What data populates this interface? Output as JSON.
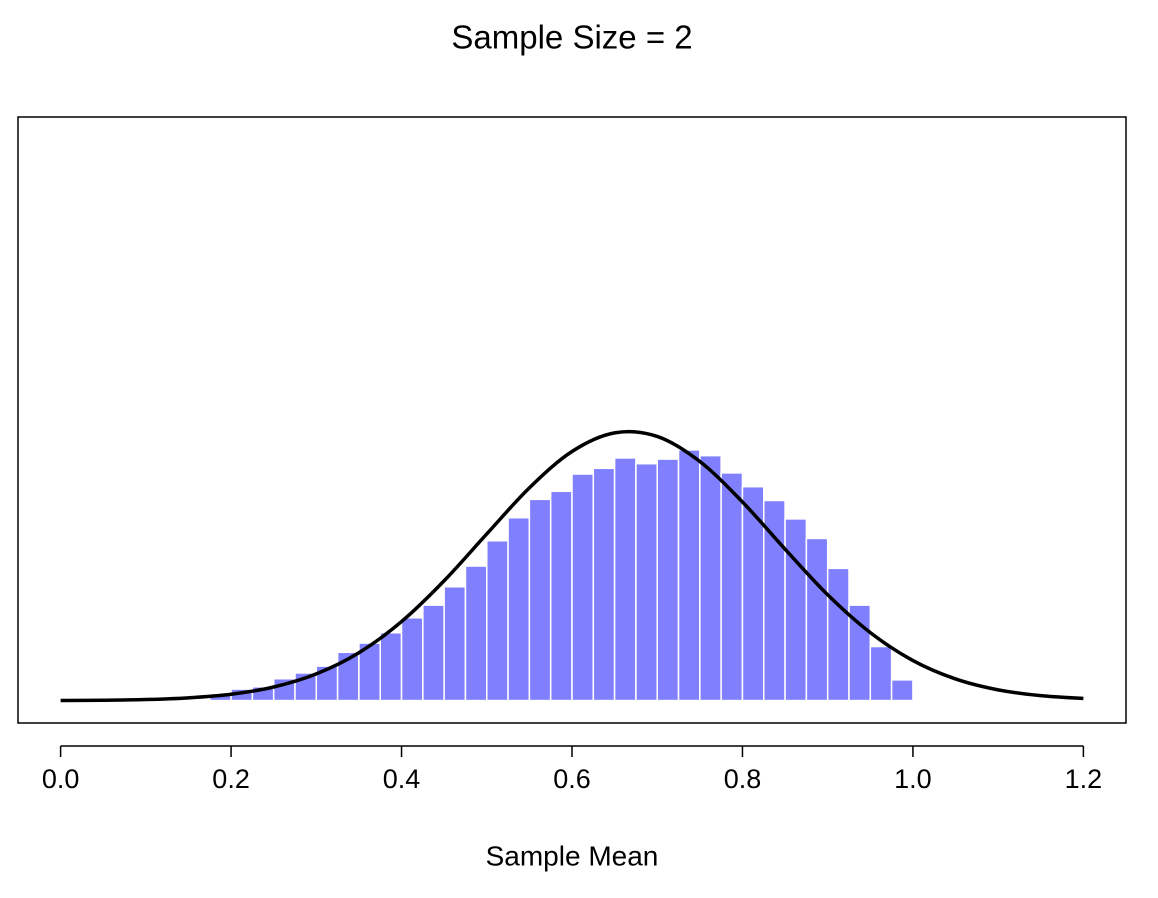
{
  "chart_data": {
    "type": "histogram",
    "title": "Sample Size = 2",
    "x_label": "Sample Mean",
    "bins": [
      0.175,
      0.2,
      0.225,
      0.25,
      0.275,
      0.3,
      0.325,
      0.35,
      0.375,
      0.4,
      0.425,
      0.45,
      0.475,
      0.5,
      0.525,
      0.55,
      0.575,
      0.6,
      0.625,
      0.65,
      0.675,
      0.7,
      0.725,
      0.75,
      0.775,
      0.8,
      0.825,
      0.85,
      0.875,
      0.9,
      0.925,
      0.95,
      0.975,
      1.0
    ],
    "values": [
      0.06,
      0.1,
      0.12,
      0.19,
      0.24,
      0.3,
      0.42,
      0.5,
      0.59,
      0.72,
      0.83,
      0.99,
      1.17,
      1.39,
      1.59,
      1.75,
      1.82,
      1.97,
      2.02,
      2.11,
      2.06,
      2.1,
      2.18,
      2.13,
      1.98,
      1.86,
      1.74,
      1.58,
      1.41,
      1.15,
      0.83,
      0.47,
      0.18
    ],
    "color": "#8080ff",
    "curve": {
      "color": "#000000",
      "x": [
        0,
        0.05,
        0.1,
        0.15,
        0.2,
        0.25,
        0.3,
        0.35,
        0.4,
        0.45,
        0.5,
        0.55,
        0.6,
        0.65,
        0.7,
        0.75,
        0.8,
        0.85,
        0.9,
        0.95,
        1.0,
        1.05,
        1.1,
        1.15,
        1.2
      ],
      "values": [
        0.001,
        0.003,
        0.009,
        0.024,
        0.055,
        0.118,
        0.232,
        0.416,
        0.687,
        1.042,
        1.449,
        1.85,
        2.166,
        2.328,
        2.297,
        2.079,
        1.727,
        1.317,
        0.92,
        0.591,
        0.348,
        0.188,
        0.093,
        0.043,
        0.018
      ]
    },
    "xlim": [
      -0.05,
      1.25
    ],
    "ylim": [
      -0.195,
      5.075
    ],
    "xticks": [
      {
        "value": 0,
        "label": "0.0"
      },
      0.2,
      0.4,
      0.6,
      0.8,
      {
        "value": 1,
        "label": "1.0"
      },
      1.2
    ]
  }
}
